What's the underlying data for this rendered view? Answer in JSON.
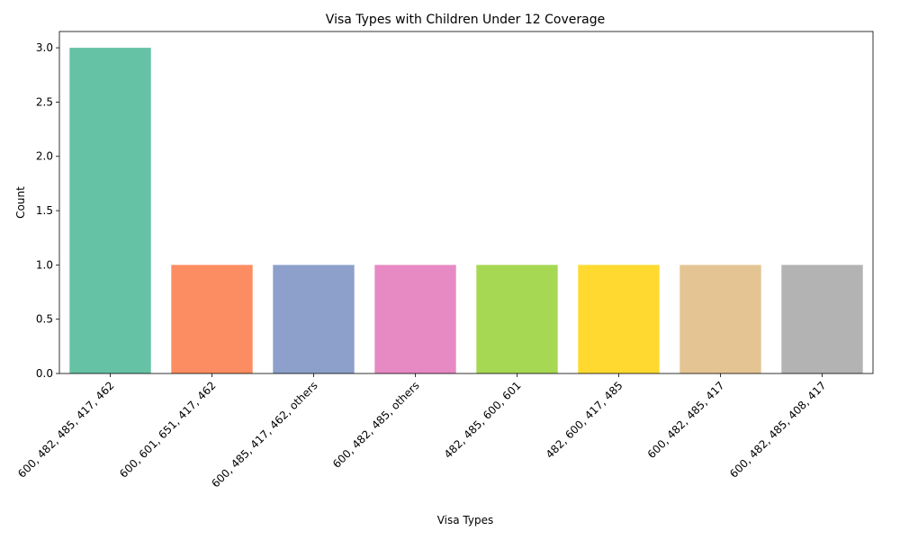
{
  "chart_data": {
    "type": "bar",
    "title": "Visa Types with Children Under 12 Coverage",
    "xlabel": "Visa Types",
    "ylabel": "Count",
    "categories": [
      "600, 482, 485, 417, 462",
      "600, 601, 651, 417, 462",
      "600, 485, 417, 462, others",
      "600, 482, 485, others",
      "482, 485, 600, 601",
      "482, 600, 417, 485",
      "600, 482, 485, 417",
      "600, 482, 485, 408, 417"
    ],
    "values": [
      3,
      1,
      1,
      1,
      1,
      1,
      1,
      1
    ],
    "colors": [
      "#66c2a5",
      "#fc8d62",
      "#8da0cb",
      "#e78ac3",
      "#a6d854",
      "#ffd92f",
      "#e5c494",
      "#b3b3b3"
    ],
    "ylim": [
      0,
      3.15
    ],
    "yticks": [
      "0.0",
      "0.5",
      "1.0",
      "1.5",
      "2.0",
      "2.5",
      "3.0"
    ],
    "xtick_rotation": 45,
    "grid": false
  }
}
